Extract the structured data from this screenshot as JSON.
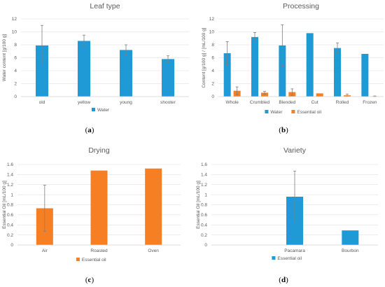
{
  "colors": {
    "water": "#1f9ad6",
    "essential_oil": "#f77f23",
    "grid": "#d9d9d9",
    "text": "#595959",
    "error_bar": "#7f7f7f"
  },
  "chart_data": [
    {
      "panel": "a",
      "type": "bar",
      "title": "Leaf type",
      "ylabel": "Water content [g/100 g]",
      "xlabel": "",
      "ylim": [
        0,
        12
      ],
      "yticks": [
        0,
        2,
        4,
        6,
        8,
        10,
        12
      ],
      "grid": true,
      "legend_position": "bottom",
      "categories": [
        "old",
        "yellow",
        "young",
        "shooter"
      ],
      "series": [
        {
          "name": "Water",
          "color_key": "water",
          "values": [
            7.9,
            8.6,
            7.2,
            5.8
          ],
          "errors": [
            3.1,
            0.9,
            0.8,
            0.5
          ]
        }
      ]
    },
    {
      "panel": "b",
      "type": "bar",
      "title": "Processing",
      "ylabel": "Content [g/100 g] / [mL/100 g]",
      "xlabel": "",
      "ylim": [
        0,
        12
      ],
      "yticks": [
        0,
        2,
        4,
        6,
        8,
        10,
        12
      ],
      "grid": true,
      "legend_position": "bottom",
      "categories": [
        "Whole",
        "Crumbled",
        "Blended",
        "Cut",
        "Rolled",
        "Frozen"
      ],
      "series": [
        {
          "name": "Water",
          "color_key": "water",
          "values": [
            6.7,
            9.2,
            7.9,
            9.8,
            7.5,
            6.6
          ],
          "errors": [
            1.8,
            0.7,
            3.2,
            0,
            0.8,
            0
          ]
        },
        {
          "name": "Essential oil",
          "color_key": "essential_oil",
          "values": [
            0.9,
            0.6,
            0.7,
            0.5,
            0.2,
            0.05
          ],
          "errors": [
            0.6,
            0.2,
            0.5,
            0,
            0.2,
            0.05
          ]
        }
      ]
    },
    {
      "panel": "c",
      "type": "bar",
      "title": "Drying",
      "ylabel": "Essential Oil [mL/100 g]",
      "xlabel": "",
      "ylim": [
        0,
        1.6
      ],
      "yticks": [
        "0",
        "0.2",
        "0.4",
        "0.6",
        "0.8",
        "1",
        "1.2",
        "1.4",
        "1.6"
      ],
      "grid": true,
      "legend_position": "bottom",
      "categories": [
        "Air",
        "Roasted",
        "Oven"
      ],
      "series": [
        {
          "name": "Essential oil",
          "color_key": "essential_oil",
          "values": [
            0.73,
            1.48,
            1.52
          ],
          "errors": [
            0.46,
            0,
            0
          ]
        }
      ]
    },
    {
      "panel": "d",
      "type": "bar",
      "title": "Variety",
      "ylabel": "Essential Oil [mL/100 g]",
      "xlabel": "",
      "ylim": [
        0,
        1.6
      ],
      "yticks": [
        "0",
        "0.2",
        "0.4",
        "0.6",
        "0.8",
        "1",
        "1.2",
        "1.4",
        "1.6"
      ],
      "grid": true,
      "legend_position": "bottom",
      "categories": [
        "",
        "Pacamara",
        "Bourbon"
      ],
      "series": [
        {
          "name": "Essential oil",
          "color_key": "water",
          "values": [
            null,
            0.96,
            0.29
          ],
          "errors": [
            0,
            0.51,
            0
          ]
        }
      ]
    }
  ],
  "panel_labels": [
    {
      "open": "(",
      "letter": "a",
      "close": ")"
    },
    {
      "open": "(",
      "letter": "b",
      "close": ")"
    },
    {
      "open": "(",
      "letter": "c",
      "close": ")"
    },
    {
      "open": "(",
      "letter": "d",
      "close": ")"
    }
  ]
}
